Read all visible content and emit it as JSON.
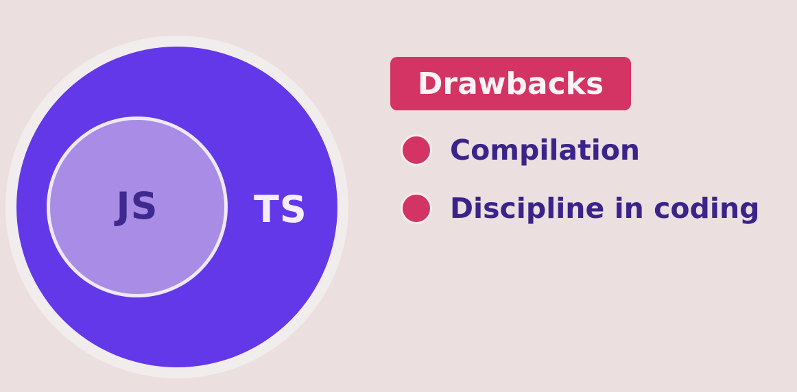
{
  "venn": {
    "inner_label": "JS",
    "outer_label": "TS"
  },
  "drawbacks": {
    "title": "Drawbacks",
    "items": [
      {
        "label": "Compilation"
      },
      {
        "label": "Discipline in coding"
      }
    ]
  },
  "colors": {
    "background": "#ecdfdf",
    "outer_circle": "#6238e8",
    "inner_circle": "#a88ce6",
    "accent": "#d43463",
    "text_dark": "#3a2389",
    "text_light": "#f4eefb"
  }
}
